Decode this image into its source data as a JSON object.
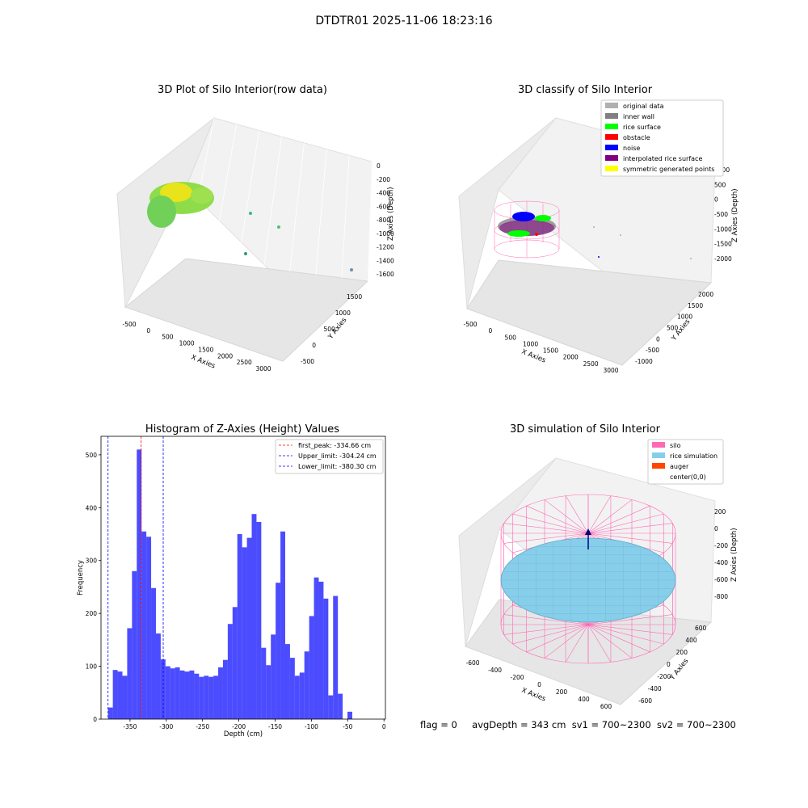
{
  "suptitle": "DTDTR01 2025-11-06 18:23:16",
  "panels": {
    "raw": {
      "title": "3D Plot of Silo Interior(row data)",
      "xlabel": "X Axies",
      "ylabel": "Y Axies",
      "zlabel": "Z Axies (Depth)",
      "xticks": [
        "-500",
        "0",
        "500",
        "1000",
        "1500",
        "2000",
        "2500",
        "3000"
      ],
      "yticks": [
        "-500",
        "0",
        "500",
        "1000",
        "1500"
      ],
      "zticks": [
        "0",
        "-200",
        "-400",
        "-600",
        "-800",
        "-1000",
        "-1200",
        "-1400",
        "-1600"
      ]
    },
    "classify": {
      "title": "3D classify of Silo Interior",
      "xlabel": "X Axies",
      "ylabel": "Y Axies",
      "zlabel": "Z Axies (Depth)",
      "xticks": [
        "-500",
        "0",
        "500",
        "1000",
        "1500",
        "2000",
        "2500",
        "3000"
      ],
      "yticks": [
        "-1000",
        "-500",
        "0",
        "500",
        "1000",
        "1500",
        "2000"
      ],
      "zticks": [
        "1000",
        "500",
        "0",
        "-500",
        "-1000",
        "-1500",
        "-2000"
      ],
      "legend": [
        {
          "label": "original data",
          "color": "#b0b0b0"
        },
        {
          "label": "inner wall",
          "color": "#808080"
        },
        {
          "label": "rice surface",
          "color": "#00ff00"
        },
        {
          "label": "obstacle",
          "color": "#ff0000"
        },
        {
          "label": "noise",
          "color": "#0000ff"
        },
        {
          "label": "interpolated rice surface",
          "color": "#800080"
        },
        {
          "label": "symmetric generated points",
          "color": "#ffff00"
        }
      ]
    },
    "simulation": {
      "title": "3D simulation of Silo Interior",
      "xlabel": "X Axies",
      "ylabel": "Y Axies",
      "zlabel": "Z Axies (Depth)",
      "xticks": [
        "-600",
        "-400",
        "-200",
        "0",
        "200",
        "400",
        "600"
      ],
      "yticks": [
        "-600",
        "-400",
        "-200",
        "0",
        "200",
        "400",
        "600"
      ],
      "zticks": [
        "200",
        "0",
        "-200",
        "-400",
        "-600",
        "-800"
      ],
      "legend": [
        {
          "label": "silo",
          "color": "#ff69b4"
        },
        {
          "label": "rice simulation",
          "color": "#87ceeb"
        },
        {
          "label": "auger",
          "color": "#ff4500"
        },
        {
          "label": "center(0,0)",
          "color": ""
        }
      ]
    }
  },
  "chart_data": {
    "type": "bar",
    "title": "Histogram of Z-Axies (Height) Values",
    "xlabel": "Depth (cm)",
    "ylabel": "Frequency",
    "xlim": [
      -390,
      2
    ],
    "ylim": [
      0,
      535
    ],
    "xticks": [
      -350,
      -300,
      -250,
      -200,
      -150,
      -100,
      -50,
      0
    ],
    "yticks": [
      0,
      100,
      200,
      300,
      400,
      500
    ],
    "bar_color": "#0000ff",
    "bin_start": -380.3,
    "bin_width": 6.6,
    "values": [
      22,
      93,
      90,
      82,
      172,
      280,
      510,
      355,
      345,
      248,
      162,
      113,
      100,
      96,
      98,
      92,
      90,
      92,
      86,
      80,
      82,
      80,
      82,
      98,
      112,
      180,
      212,
      350,
      325,
      343,
      388,
      373,
      135,
      102,
      160,
      258,
      355,
      142,
      116,
      82,
      88,
      128,
      195,
      268,
      260,
      228,
      45,
      233,
      48,
      0,
      14
    ],
    "lines": [
      {
        "label": "first_peak: -334.66 cm",
        "x": -334.66,
        "color": "#ff0000"
      },
      {
        "label": "Upper_limit: -304.24 cm",
        "x": -304.24,
        "color": "#0000ff"
      },
      {
        "label": "Lower_limit: -380.30 cm",
        "x": -380.3,
        "color": "#0000ff"
      }
    ]
  },
  "status": {
    "flag": "flag = 0",
    "avg": "avgDepth = 343 cm",
    "sv1": "sv1 = 700~2300",
    "sv2": "sv2 = 700~2300"
  }
}
